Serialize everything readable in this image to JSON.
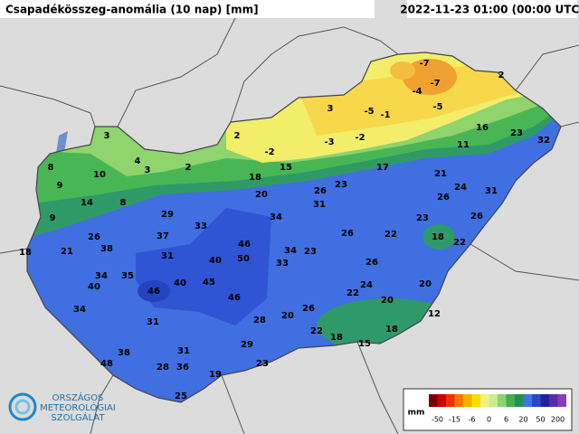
{
  "title": "Csapadékösszeg-anomália (10 nap) [mm]",
  "timestamp": "2022-11-23 01:00 (00:00 UTC)",
  "stations": [
    3,
    4,
    3,
    2,
    8,
    9,
    10,
    14,
    8,
    9,
    18,
    21,
    26,
    38,
    29,
    33,
    37,
    31,
    34,
    35,
    40,
    34,
    46,
    40,
    40,
    45,
    46,
    50,
    46,
    31,
    38,
    48,
    31,
    28,
    36,
    19,
    25,
    29,
    23,
    28,
    20,
    26,
    22,
    18,
    15,
    18,
    12,
    20,
    20,
    22,
    24,
    26,
    22,
    26,
    23,
    33,
    34,
    34,
    31,
    26,
    23,
    20,
    18,
    15,
    2,
    -2,
    3,
    -3,
    -2,
    -5,
    -1,
    -4,
    -7,
    -7,
    -5,
    2,
    16,
    11,
    23,
    32,
    17,
    21,
    24,
    26,
    31,
    23,
    26,
    18,
    22
  ],
  "legend": {
    "unit": "mm",
    "labels": [
      -50,
      -15,
      -6,
      0,
      6,
      20,
      50,
      200
    ]
  },
  "logo": [
    "ORSZÁGOS",
    "METEOROLÓGIAI",
    "SZOLGÁLAT"
  ]
}
